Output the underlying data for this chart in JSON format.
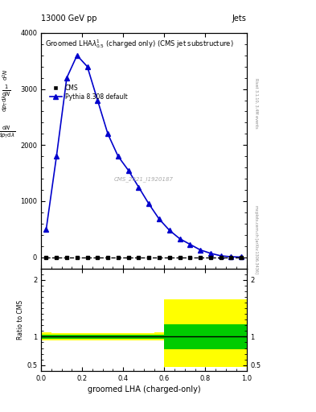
{
  "title_top": "13000 GeV pp",
  "title_right": "Jets",
  "plot_title": "Groomed LHA$\\lambda^{1}_{0.5}$ (charged only) (CMS jet substructure)",
  "cms_label": "CMS",
  "pythia_label": "Pythia 8.308 default",
  "watermark": "CMS_2021_I1920187",
  "right_label": "Rivet 3.1.10, 3.4M events",
  "arxiv_label": "mcplots.cern.ch [arXiv:1306.3436]",
  "cms_x": [
    0.025,
    0.075,
    0.125,
    0.175,
    0.225,
    0.275,
    0.325,
    0.375,
    0.425,
    0.475,
    0.525,
    0.575,
    0.625,
    0.675,
    0.725,
    0.775,
    0.825,
    0.875,
    0.925,
    0.975
  ],
  "cms_y": [
    0,
    0,
    0,
    0,
    0,
    0,
    0,
    0,
    0,
    0,
    0,
    0,
    0,
    0,
    0,
    0,
    0,
    0,
    0,
    0
  ],
  "pythia_x": [
    0.025,
    0.075,
    0.125,
    0.175,
    0.225,
    0.275,
    0.325,
    0.375,
    0.425,
    0.475,
    0.525,
    0.575,
    0.625,
    0.675,
    0.725,
    0.775,
    0.825,
    0.875,
    0.925,
    0.975
  ],
  "pythia_y": [
    500,
    1800,
    3200,
    3600,
    3400,
    2800,
    2200,
    1800,
    1550,
    1250,
    950,
    680,
    480,
    330,
    230,
    130,
    70,
    25,
    8,
    3
  ],
  "ylim": [
    0,
    4000
  ],
  "ylim_display": [
    -200,
    4000
  ],
  "ylabel_parts": [
    "$\\frac{1}{\\mathrm{d}N}$",
    "$\\frac{\\mathrm{d}N}{\\mathrm{d}p_T \\mathrm{d}\\lambda}$"
  ],
  "xlabel": "groomed LHA (charged-only)",
  "ratio_ylabel": "Ratio to CMS",
  "ratio_ylim": [
    0.4,
    2.2
  ],
  "ratio_yticks": [
    0.5,
    1.0,
    2.0
  ],
  "ratio_ytick_labels": [
    "0.5",
    "1",
    "2"
  ],
  "ratio_x_edges": [
    0.0,
    0.05,
    0.1,
    0.15,
    0.2,
    0.25,
    0.3,
    0.35,
    0.4,
    0.45,
    0.5,
    0.55,
    0.6,
    0.65,
    0.7,
    0.75,
    0.8,
    0.85,
    0.9,
    0.95,
    1.0
  ],
  "ratio_green_lo": [
    0.96,
    0.97,
    0.97,
    0.97,
    0.97,
    0.97,
    0.97,
    0.97,
    0.97,
    0.97,
    0.97,
    0.96,
    0.78,
    0.78,
    0.78,
    0.78,
    0.78,
    0.78,
    0.78,
    0.78
  ],
  "ratio_green_hi": [
    1.04,
    1.03,
    1.03,
    1.03,
    1.03,
    1.03,
    1.03,
    1.03,
    1.03,
    1.03,
    1.03,
    1.04,
    1.22,
    1.22,
    1.22,
    1.22,
    1.22,
    1.22,
    1.22,
    1.22
  ],
  "ratio_yellow_lo": [
    0.93,
    0.94,
    0.94,
    0.94,
    0.94,
    0.94,
    0.94,
    0.94,
    0.94,
    0.94,
    0.94,
    0.93,
    0.47,
    0.47,
    0.47,
    0.47,
    0.47,
    0.47,
    0.47,
    0.47
  ],
  "ratio_yellow_hi": [
    1.07,
    1.06,
    1.06,
    1.06,
    1.06,
    1.06,
    1.06,
    1.06,
    1.06,
    1.06,
    1.06,
    1.07,
    1.65,
    1.65,
    1.65,
    1.65,
    1.65,
    1.65,
    1.65,
    1.65
  ],
  "colors": {
    "pythia_line": "#0000cc",
    "cms_marker": "#000000",
    "green_band": "#00cc00",
    "yellow_band": "#ffff00",
    "ratio_line": "#000000"
  }
}
